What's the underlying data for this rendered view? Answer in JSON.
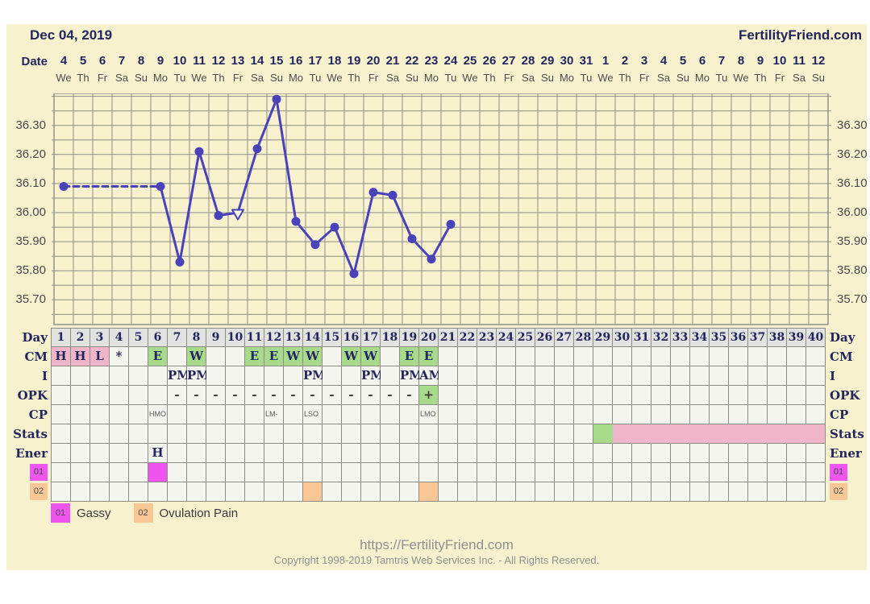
{
  "colors": {
    "background": "#f7f1ce",
    "navy": "#23265e",
    "line": "#4a42b8",
    "grid": "#8d8d85",
    "cell_bg": "#f4f4ef",
    "day_header_bg": "#e2e2e1",
    "pink": "#efb6c9",
    "green": "#a7da8b",
    "magenta": "#ee55ee",
    "orange": "#f8c795",
    "marker_fill": "#fdf9e8"
  },
  "header": {
    "date": "Dec 04, 2019",
    "site": "FertilityFriend.com"
  },
  "calendar": {
    "label": "Date",
    "dates": [
      "4",
      "5",
      "6",
      "7",
      "8",
      "9",
      "10",
      "11",
      "12",
      "13",
      "14",
      "15",
      "16",
      "17",
      "18",
      "19",
      "20",
      "21",
      "22",
      "23",
      "24",
      "25",
      "26",
      "27",
      "28",
      "29",
      "30",
      "31",
      "1",
      "2",
      "3",
      "4",
      "5",
      "6",
      "7",
      "8",
      "9",
      "10",
      "11",
      "12"
    ],
    "weekdays": [
      "We",
      "Th",
      "Fr",
      "Sa",
      "Su",
      "Mo",
      "Tu",
      "We",
      "Th",
      "Fr",
      "Sa",
      "Su",
      "Mo",
      "Tu",
      "We",
      "Th",
      "Fr",
      "Sa",
      "Su",
      "Mo",
      "Tu",
      "We",
      "Th",
      "Fr",
      "Sa",
      "Su",
      "Mo",
      "Tu",
      "We",
      "Th",
      "Fr",
      "Sa",
      "Su",
      "Mo",
      "Tu",
      "We",
      "Th",
      "Fr",
      "Sa",
      "Su"
    ]
  },
  "chart_data": {
    "type": "line",
    "x_days": 40,
    "ylim": [
      35.615,
      36.41
    ],
    "grid_step": 0.05,
    "yticks": [
      {
        "value": 36.3,
        "label": "36.30"
      },
      {
        "value": 36.2,
        "label": "36.20"
      },
      {
        "value": 36.1,
        "label": "36.10"
      },
      {
        "value": 36.0,
        "label": "36.00"
      },
      {
        "value": 35.9,
        "label": "35.90"
      },
      {
        "value": 35.8,
        "label": "35.80"
      },
      {
        "value": 35.7,
        "label": "35.70"
      }
    ],
    "series": [
      {
        "name": "temperature",
        "points": [
          {
            "day": 1,
            "temp": 36.09
          },
          {
            "day": 6,
            "temp": 36.09
          },
          {
            "day": 7,
            "temp": 35.83
          },
          {
            "day": 8,
            "temp": 36.21
          },
          {
            "day": 9,
            "temp": 35.99
          },
          {
            "day": 10,
            "temp": 36.0,
            "marker": "open-triangle"
          },
          {
            "day": 11,
            "temp": 36.22
          },
          {
            "day": 12,
            "temp": 36.39
          },
          {
            "day": 13,
            "temp": 35.97
          },
          {
            "day": 14,
            "temp": 35.89
          },
          {
            "day": 15,
            "temp": 35.95
          },
          {
            "day": 16,
            "temp": 35.79
          },
          {
            "day": 17,
            "temp": 36.07
          },
          {
            "day": 18,
            "temp": 36.06
          },
          {
            "day": 19,
            "temp": 35.91
          },
          {
            "day": 20,
            "temp": 35.84
          },
          {
            "day": 21,
            "temp": 35.96
          }
        ],
        "dashed_segments": [
          [
            1,
            6
          ]
        ]
      }
    ]
  },
  "table": {
    "rows": [
      {
        "id": "day",
        "label": "Day",
        "cells": [
          {
            "d": 1,
            "t": "1"
          },
          {
            "d": 2,
            "t": "2"
          },
          {
            "d": 3,
            "t": "3"
          },
          {
            "d": 4,
            "t": "4"
          },
          {
            "d": 5,
            "t": "5"
          },
          {
            "d": 6,
            "t": "6"
          },
          {
            "d": 7,
            "t": "7"
          },
          {
            "d": 8,
            "t": "8"
          },
          {
            "d": 9,
            "t": "9"
          },
          {
            "d": 10,
            "t": "10"
          },
          {
            "d": 11,
            "t": "11"
          },
          {
            "d": 12,
            "t": "12"
          },
          {
            "d": 13,
            "t": "13"
          },
          {
            "d": 14,
            "t": "14"
          },
          {
            "d": 15,
            "t": "15"
          },
          {
            "d": 16,
            "t": "16"
          },
          {
            "d": 17,
            "t": "17"
          },
          {
            "d": 18,
            "t": "18"
          },
          {
            "d": 19,
            "t": "19"
          },
          {
            "d": 20,
            "t": "20"
          },
          {
            "d": 21,
            "t": "21"
          },
          {
            "d": 22,
            "t": "22"
          },
          {
            "d": 23,
            "t": "23"
          },
          {
            "d": 24,
            "t": "24"
          },
          {
            "d": 25,
            "t": "25"
          },
          {
            "d": 26,
            "t": "26"
          },
          {
            "d": 27,
            "t": "27"
          },
          {
            "d": 28,
            "t": "28"
          },
          {
            "d": 29,
            "t": "29"
          },
          {
            "d": 30,
            "t": "30"
          },
          {
            "d": 31,
            "t": "31"
          },
          {
            "d": 32,
            "t": "32"
          },
          {
            "d": 33,
            "t": "33"
          },
          {
            "d": 34,
            "t": "34"
          },
          {
            "d": 35,
            "t": "35"
          },
          {
            "d": 36,
            "t": "36"
          },
          {
            "d": 37,
            "t": "37"
          },
          {
            "d": 38,
            "t": "38"
          },
          {
            "d": 39,
            "t": "39"
          },
          {
            "d": 40,
            "t": "40"
          }
        ]
      },
      {
        "id": "cm",
        "label": "CM",
        "cells": [
          {
            "d": 1,
            "t": "H",
            "bg": "pink"
          },
          {
            "d": 2,
            "t": "H",
            "bg": "pink"
          },
          {
            "d": 3,
            "t": "L",
            "bg": "pink"
          },
          {
            "d": 4,
            "t": "*"
          },
          {
            "d": 6,
            "t": "E",
            "bg": "green"
          },
          {
            "d": 8,
            "t": "W",
            "bg": "green"
          },
          {
            "d": 11,
            "t": "E",
            "bg": "green"
          },
          {
            "d": 12,
            "t": "E",
            "bg": "green"
          },
          {
            "d": 13,
            "t": "W",
            "bg": "green"
          },
          {
            "d": 14,
            "t": "W",
            "bg": "green"
          },
          {
            "d": 16,
            "t": "W",
            "bg": "green"
          },
          {
            "d": 17,
            "t": "W",
            "bg": "green"
          },
          {
            "d": 19,
            "t": "E",
            "bg": "green"
          },
          {
            "d": 20,
            "t": "E",
            "bg": "green"
          }
        ]
      },
      {
        "id": "i",
        "label": "I",
        "cells": [
          {
            "d": 7,
            "t": "PM"
          },
          {
            "d": 8,
            "t": "PM"
          },
          {
            "d": 14,
            "t": "PM"
          },
          {
            "d": 17,
            "t": "PM"
          },
          {
            "d": 19,
            "t": "PM"
          },
          {
            "d": 20,
            "t": "AM"
          }
        ]
      },
      {
        "id": "opk",
        "label": "OPK",
        "cells": [
          {
            "d": 7,
            "t": "-"
          },
          {
            "d": 8,
            "t": "-"
          },
          {
            "d": 9,
            "t": "-"
          },
          {
            "d": 10,
            "t": "-"
          },
          {
            "d": 11,
            "t": "-"
          },
          {
            "d": 12,
            "t": "-"
          },
          {
            "d": 13,
            "t": "-"
          },
          {
            "d": 14,
            "t": "-"
          },
          {
            "d": 15,
            "t": "-"
          },
          {
            "d": 16,
            "t": "-"
          },
          {
            "d": 17,
            "t": "-"
          },
          {
            "d": 18,
            "t": "-"
          },
          {
            "d": 19,
            "t": "-"
          },
          {
            "d": 20,
            "t": "+",
            "bg": "green"
          }
        ]
      },
      {
        "id": "cp",
        "label": "CP",
        "cells": [
          {
            "d": 6,
            "t": "HMO"
          },
          {
            "d": 12,
            "t": "LM-"
          },
          {
            "d": 14,
            "t": "LSO"
          },
          {
            "d": 20,
            "t": "LMO"
          }
        ]
      },
      {
        "id": "stats",
        "label": "Stats",
        "cells": [
          {
            "d": 29,
            "bg": "green"
          },
          {
            "d": 30,
            "bg": "pink"
          },
          {
            "d": 31,
            "bg": "pink"
          },
          {
            "d": 32,
            "bg": "pink"
          },
          {
            "d": 33,
            "bg": "pink"
          },
          {
            "d": 34,
            "bg": "pink"
          },
          {
            "d": 35,
            "bg": "pink"
          },
          {
            "d": 36,
            "bg": "pink"
          },
          {
            "d": 37,
            "bg": "pink"
          },
          {
            "d": 38,
            "bg": "pink"
          },
          {
            "d": 39,
            "bg": "pink"
          },
          {
            "d": 40,
            "bg": "pink"
          }
        ]
      },
      {
        "id": "ener",
        "label": "Ener",
        "cells": [
          {
            "d": 6,
            "t": "H"
          }
        ]
      },
      {
        "id": "s01",
        "label": "01",
        "label_style": "magenta",
        "cells": [
          {
            "d": 6,
            "bg": "magenta"
          }
        ]
      },
      {
        "id": "s02",
        "label": "02",
        "label_style": "orange",
        "cells": [
          {
            "d": 14,
            "bg": "orange"
          },
          {
            "d": 20,
            "bg": "orange"
          }
        ]
      }
    ]
  },
  "legend": [
    {
      "code": "01",
      "label": "Gassy",
      "color": "magenta"
    },
    {
      "code": "02",
      "label": "Ovulation Pain",
      "color": "orange"
    }
  ],
  "footer": {
    "url": "https://FertilityFriend.com",
    "copyright": "Copyright 1998-2019 Tamtris Web Services Inc. - All Rights Reserved."
  }
}
